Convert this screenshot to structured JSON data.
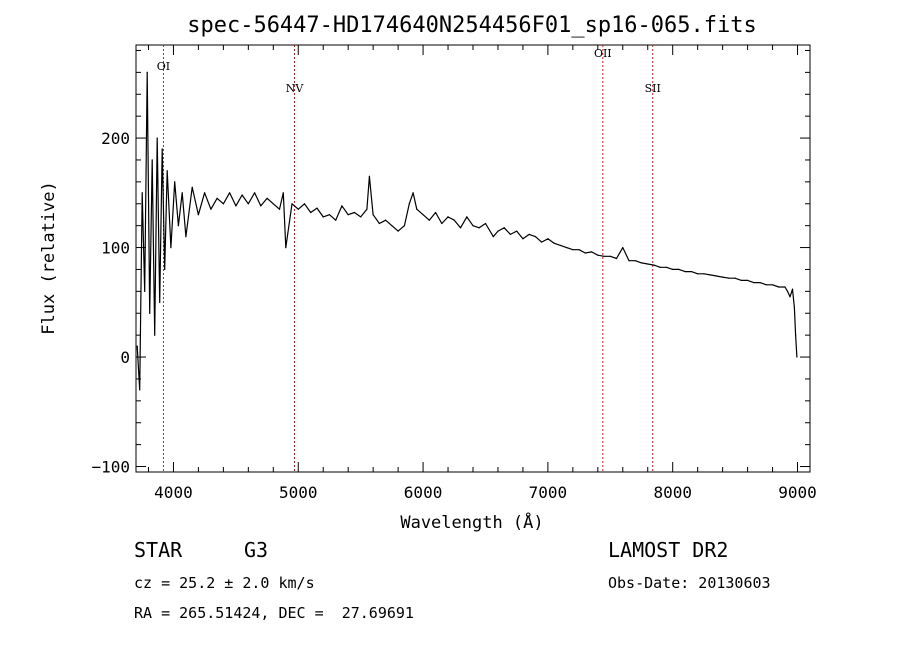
{
  "chart_data": {
    "type": "line",
    "title": "spec-56447-HD174640N254456F01_sp16-065.fits",
    "xlabel": "Wavelength (Å)",
    "ylabel": "Flux (relative)",
    "xlim": [
      3700,
      9100
    ],
    "ylim": [
      -105,
      285
    ],
    "xticks": [
      "4000",
      "5000",
      "6000",
      "7000",
      "8000",
      "9000"
    ],
    "yticks": [
      "−100",
      "0",
      "100",
      "200"
    ],
    "xtick_values": [
      4000,
      5000,
      6000,
      7000,
      8000,
      9000
    ],
    "ytick_values": [
      -100,
      0,
      100,
      200
    ],
    "grid": false,
    "series": [
      {
        "x": [
          3710,
          3730,
          3750,
          3770,
          3790,
          3810,
          3830,
          3850,
          3870,
          3890,
          3910,
          3930,
          3950,
          3980,
          4010,
          4040,
          4070,
          4100,
          4150,
          4200,
          4250,
          4300,
          4350,
          4400,
          4450,
          4500,
          4550,
          4600,
          4650,
          4700,
          4750,
          4800,
          4850,
          4880,
          4900,
          4950,
          5000,
          5050,
          5100,
          5150,
          5200,
          5250,
          5300,
          5350,
          5400,
          5450,
          5500,
          5550,
          5570,
          5600,
          5650,
          5700,
          5750,
          5800,
          5850,
          5890,
          5920,
          5950,
          6000,
          6050,
          6100,
          6150,
          6200,
          6250,
          6300,
          6350,
          6400,
          6450,
          6500,
          6563,
          6600,
          6650,
          6700,
          6750,
          6800,
          6850,
          6900,
          6950,
          7000,
          7050,
          7100,
          7150,
          7200,
          7250,
          7300,
          7350,
          7400,
          7450,
          7500,
          7550,
          7600,
          7650,
          7700,
          7750,
          7800,
          7850,
          7900,
          7950,
          8000,
          8050,
          8100,
          8150,
          8200,
          8250,
          8300,
          8350,
          8400,
          8450,
          8500,
          8550,
          8600,
          8650,
          8700,
          8750,
          8800,
          8850,
          8900,
          8920,
          8940,
          8960,
          8975,
          8985,
          8995
        ],
        "y": [
          10,
          -30,
          150,
          60,
          260,
          40,
          180,
          20,
          200,
          50,
          190,
          80,
          170,
          100,
          160,
          120,
          150,
          110,
          155,
          130,
          150,
          135,
          145,
          140,
          150,
          138,
          148,
          140,
          150,
          138,
          145,
          140,
          135,
          150,
          100,
          140,
          135,
          140,
          132,
          136,
          128,
          130,
          125,
          138,
          130,
          132,
          128,
          135,
          165,
          130,
          122,
          125,
          120,
          115,
          120,
          140,
          150,
          135,
          130,
          125,
          132,
          122,
          128,
          125,
          118,
          128,
          120,
          118,
          122,
          110,
          115,
          118,
          112,
          115,
          108,
          112,
          110,
          105,
          108,
          104,
          102,
          100,
          98,
          98,
          95,
          96,
          93,
          92,
          92,
          90,
          100,
          88,
          88,
          86,
          85,
          84,
          82,
          82,
          80,
          80,
          78,
          78,
          76,
          76,
          75,
          74,
          73,
          72,
          72,
          70,
          70,
          68,
          68,
          66,
          66,
          64,
          64,
          60,
          55,
          62,
          45,
          20,
          0
        ]
      }
    ],
    "line_markers": [
      {
        "label": "OI",
        "wavelength": 3920,
        "label_flux": 262
      },
      {
        "label": "NV",
        "wavelength": 4970,
        "label_flux": 242
      },
      {
        "label": "OII",
        "wavelength": 7440,
        "label_flux": 274
      },
      {
        "label": "SII",
        "wavelength": 7840,
        "label_flux": 242
      }
    ]
  },
  "info": {
    "object_class": "STAR",
    "subclass": "G3",
    "cz": "cz = 25.2 ± 2.0 km/s",
    "coords": "RA = 265.51424, DEC =  27.69691",
    "survey": "LAMOST DR2",
    "obs_date": "Obs-Date: 20130603"
  },
  "colors": {
    "line_marker": "#b22222",
    "spectrum": "#000000"
  }
}
